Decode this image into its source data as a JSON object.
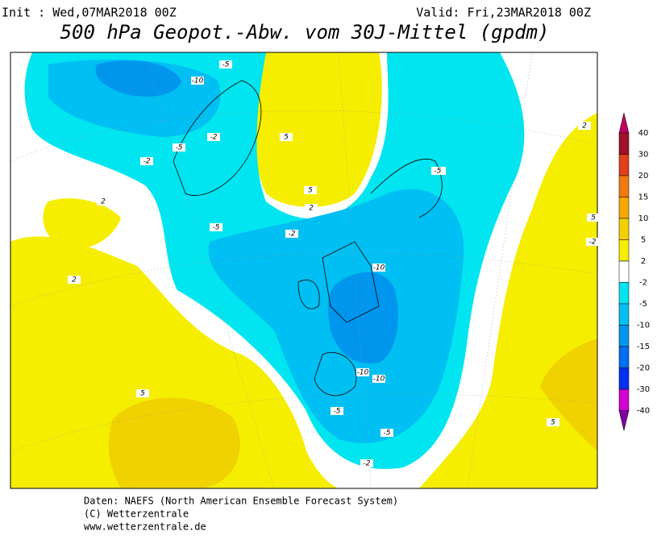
{
  "header": {
    "init": "Init : Wed,07MAR2018 00Z",
    "valid": "Valid: Fri,23MAR2018 00Z",
    "title": "500 hPa Geopot.-Abw. vom 30J-Mittel (gpdm)"
  },
  "contour_labels": [
    "-5",
    "-10",
    "-2",
    "-5",
    "-2",
    "2",
    "5",
    "5",
    "-5",
    "2",
    "-2",
    "-5",
    "-10",
    "-10",
    "-10",
    "-5",
    "-5",
    "-2",
    "2",
    "5",
    "5",
    "-5",
    "5",
    "2",
    "-2"
  ],
  "legend": {
    "labels": [
      "40",
      "30",
      "20",
      "15",
      "10",
      "5",
      "2",
      "-2",
      "-5",
      "-10",
      "-15",
      "-20",
      "-30",
      "-40"
    ]
  },
  "footer": [
    "Daten: NAEFS (North American Ensemble Forecast System)",
    "(C) Wetterzentrale",
    "www.wetterzentrale.de"
  ]
}
